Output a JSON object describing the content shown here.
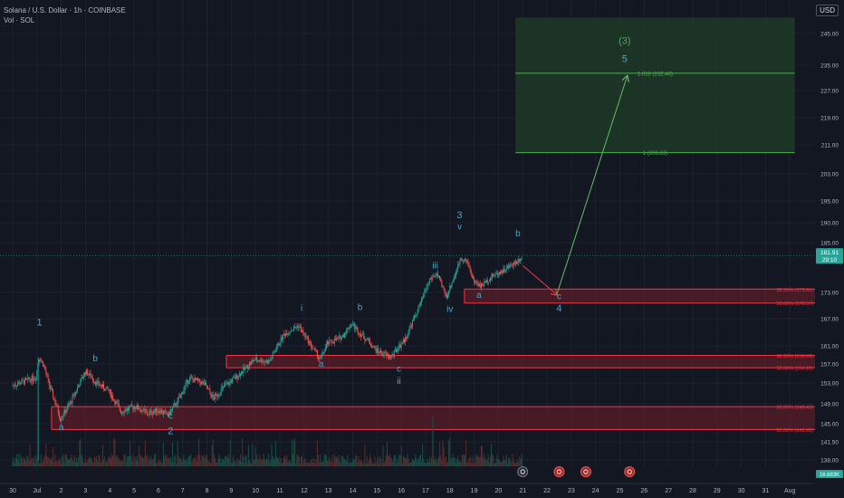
{
  "header": {
    "title": "Solana / U.S. Dollar · 1h · COINBASE",
    "indicator": "Vol · SOL"
  },
  "currency_button": "USD",
  "colors": {
    "bg": "#131722",
    "up": "#26a69a",
    "down": "#ef5350",
    "wave": "#4ba3c7",
    "fib_green": "#4caf50",
    "fib_red": "#f23645",
    "arrow_green": "#66bb6a",
    "arrow_red": "#f23645"
  },
  "chart_data": {
    "type": "candlestick",
    "instrument": "SOL/USD",
    "timeframe": "1h",
    "y_axis": {
      "ticks": [
        245.0,
        235.0,
        227.0,
        219.0,
        211.0,
        203.0,
        195.0,
        190.0,
        185.0,
        173.0,
        167.0,
        161.0,
        157.0,
        153.0,
        149.0,
        145.0,
        141.5,
        138.0
      ]
    },
    "x_axis": {
      "ticks": [
        "30",
        "Jul",
        "2",
        "3",
        "4",
        "5",
        "6",
        "7",
        "8",
        "9",
        "10",
        "11",
        "12",
        "13",
        "14",
        "15",
        "16",
        "17",
        "18",
        "19",
        "20",
        "21",
        "22",
        "23",
        "24",
        "25",
        "26",
        "27",
        "28",
        "29",
        "30",
        "31",
        "Aug"
      ]
    },
    "price_path": [
      [
        0,
        152.5
      ],
      [
        1,
        154.2
      ],
      [
        1.12,
        158.5
      ],
      [
        1.3,
        157.0
      ],
      [
        1.55,
        152.5
      ],
      [
        1.85,
        148.5
      ],
      [
        2.0,
        146.0
      ],
      [
        2.4,
        149.0
      ],
      [
        3.05,
        155.5
      ],
      [
        3.5,
        153.0
      ],
      [
        4.0,
        151.5
      ],
      [
        4.5,
        147.5
      ],
      [
        5.1,
        148.5
      ],
      [
        5.6,
        147.0
      ],
      [
        6.0,
        147.8
      ],
      [
        6.45,
        146.8
      ],
      [
        6.9,
        150.0
      ],
      [
        7.3,
        154.0
      ],
      [
        7.9,
        153.0
      ],
      [
        8.3,
        150.0
      ],
      [
        8.8,
        152.5
      ],
      [
        9.3,
        154.5
      ],
      [
        10.0,
        158.0
      ],
      [
        10.6,
        157.5
      ],
      [
        11.2,
        163.5
      ],
      [
        11.8,
        165.5
      ],
      [
        12.4,
        160.5
      ],
      [
        12.7,
        158.0
      ],
      [
        13.0,
        161.5
      ],
      [
        13.6,
        163.0
      ],
      [
        14.0,
        166.0
      ],
      [
        14.3,
        164.0
      ],
      [
        14.7,
        162.0
      ],
      [
        15.0,
        160.0
      ],
      [
        15.6,
        158.5
      ],
      [
        16.2,
        162.5
      ],
      [
        16.8,
        170.0
      ],
      [
        17.2,
        176.0
      ],
      [
        17.5,
        177.5
      ],
      [
        17.9,
        172.0
      ],
      [
        18.3,
        178.0
      ],
      [
        18.5,
        181.5
      ],
      [
        18.8,
        180.0
      ],
      [
        19.0,
        176.0
      ],
      [
        19.3,
        174.5
      ],
      [
        19.8,
        177.0
      ],
      [
        20.3,
        178.5
      ],
      [
        20.8,
        180.5
      ],
      [
        21.0,
        181.5
      ]
    ],
    "last_price": "181.91",
    "countdown": "29:10",
    "volume_last": "16.683K",
    "waves": [
      {
        "text": "1",
        "t": 1.1,
        "p": 165.5
      },
      {
        "text": "a",
        "t": 2.0,
        "p": 143.8
      },
      {
        "text": "b",
        "t": 3.4,
        "p": 157.6
      },
      {
        "text": "c",
        "t": 6.5,
        "p": 146.0
      },
      {
        "text": "2",
        "t": 6.5,
        "p": 143.0
      },
      {
        "text": "i",
        "t": 11.9,
        "p": 168.8
      },
      {
        "text": "a",
        "t": 12.7,
        "p": 156.4
      },
      {
        "text": "b",
        "t": 14.3,
        "p": 169.0
      },
      {
        "text": "c",
        "t": 15.9,
        "p": 155.4
      },
      {
        "text": "ii",
        "t": 15.9,
        "p": 152.8
      },
      {
        "text": "iii",
        "t": 17.4,
        "p": 178.8
      },
      {
        "text": "iv",
        "t": 18.0,
        "p": 168.6
      },
      {
        "text": "3",
        "t": 18.4,
        "p": 191.0
      },
      {
        "text": "v",
        "t": 18.4,
        "p": 188.3
      },
      {
        "text": "a",
        "t": 19.2,
        "p": 171.8
      },
      {
        "text": "b",
        "t": 20.8,
        "p": 186.6
      },
      {
        "text": "c",
        "t": 22.5,
        "p": 171.5
      },
      {
        "text": "4",
        "t": 22.5,
        "p": 168.7
      },
      {
        "text": "(3)",
        "t": 25.2,
        "p": 241.7
      },
      {
        "text": "5",
        "t": 25.2,
        "p": 236.0
      }
    ],
    "target_box": {
      "t0": 20.7,
      "t1": 32.2,
      "p_top": 250.0,
      "p_bottom": 208.8
    },
    "fib_green": [
      {
        "label": "1.618 (232.46)",
        "p": 232.46
      },
      {
        "label": "1 (208.83)",
        "p": 208.83
      }
    ],
    "fib_zones": [
      {
        "t0": 18.6,
        "label_top": "38.20% (173.81)",
        "p_top": 173.81,
        "label_bottom": "50.00% (170.57)",
        "p_bottom": 170.57
      },
      {
        "t0": 8.8,
        "label_top": "38.20% (158.89)",
        "p_top": 158.89,
        "label_bottom": "50.00% (156.22)",
        "p_bottom": 156.22
      },
      {
        "t0": 1.6,
        "label_top": "38.20% (148.43)",
        "p_top": 148.43,
        "label_bottom": "50.00% (143.88)",
        "p_bottom": 143.88
      }
    ],
    "projection": [
      {
        "color": "red",
        "from": [
          21.0,
          179.5
        ],
        "to": [
          22.4,
          172.5
        ]
      },
      {
        "color": "green",
        "from": [
          22.4,
          172.5
        ],
        "to": [
          25.3,
          231.5
        ]
      }
    ],
    "events": [
      21.0,
      22.5,
      23.6,
      25.4
    ]
  }
}
